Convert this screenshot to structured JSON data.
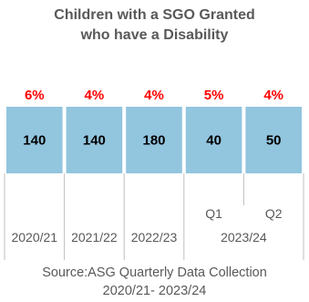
{
  "chart_data": {
    "type": "table",
    "title_line1": "Children with a SGO Granted",
    "title_line2": "who have a Disability",
    "series": [
      {
        "values": [
          140,
          140,
          180,
          40,
          50
        ],
        "labels": [
          "140",
          "140",
          "180",
          "40",
          "50"
        ]
      },
      {
        "values": [
          6,
          4,
          4,
          5,
          4
        ],
        "labels": [
          "6%",
          "4%",
          "4%",
          "5%",
          "4%"
        ]
      }
    ],
    "quarter_labels": [
      "",
      "",
      "",
      "Q1",
      "Q2"
    ],
    "year_labels": [
      "2020/21",
      "2021/22",
      "2022/23",
      "2023/24"
    ],
    "source_line1": "Source:ASG Quarterly Data Collection",
    "source_line2": "2020/21- 2023/24",
    "colors": {
      "bar_fill": "#92c5de",
      "percent_text": "#ff0000",
      "value_text": "#000000",
      "grid_line": "#bfbfbf",
      "axis_text": "#595959"
    }
  }
}
